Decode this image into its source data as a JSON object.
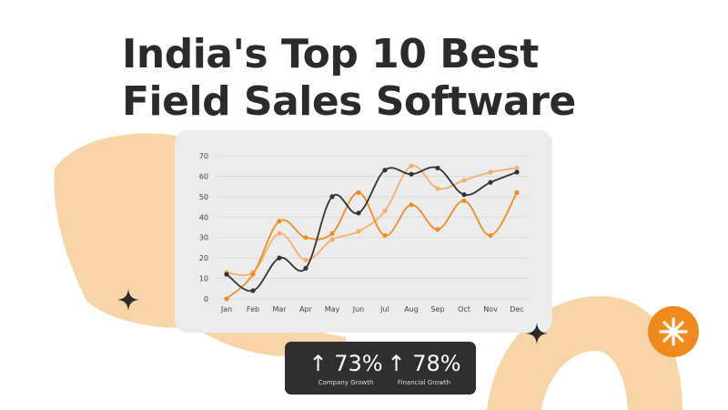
{
  "title": {
    "line1": "India's Top 10 Best",
    "line2": "Field Sales Software"
  },
  "stats": [
    {
      "arrow": "↑",
      "value": "73%",
      "label": "Company Growth"
    },
    {
      "arrow": "↑",
      "value": "78%",
      "label": "Financial Growth"
    }
  ],
  "colors": {
    "background_shape": "#f7d5a8",
    "series_dark": "#333333",
    "series_orange": "#ef8d1e",
    "series_light_orange": "#f6b06a",
    "badge": "#f08a1c",
    "stats_box": "#2f2f2f"
  },
  "icons": [
    "four-point-star-icon",
    "four-point-star-icon",
    "asterisk-icon"
  ],
  "chart_data": {
    "type": "line",
    "categories": [
      "Jan",
      "Feb",
      "Mar",
      "Apr",
      "May",
      "Jun",
      "Jul",
      "Aug",
      "Sep",
      "Oct",
      "Nov",
      "Dec"
    ],
    "y_ticks": [
      0,
      10,
      20,
      30,
      40,
      50,
      60,
      70
    ],
    "ylim": [
      0,
      70
    ],
    "grid": true,
    "series": [
      {
        "color": "#333333",
        "values": [
          12,
          4,
          20,
          15,
          50,
          42,
          63,
          61,
          64,
          51,
          57,
          62
        ]
      },
      {
        "color": "#ef8d1e",
        "values": [
          0,
          12,
          38,
          30,
          32,
          52,
          31,
          46,
          34,
          48,
          31,
          52
        ]
      },
      {
        "color": "#f6b06a",
        "values": [
          13,
          13,
          32,
          19,
          29,
          33,
          43,
          65,
          54,
          58,
          62,
          64
        ]
      }
    ]
  }
}
